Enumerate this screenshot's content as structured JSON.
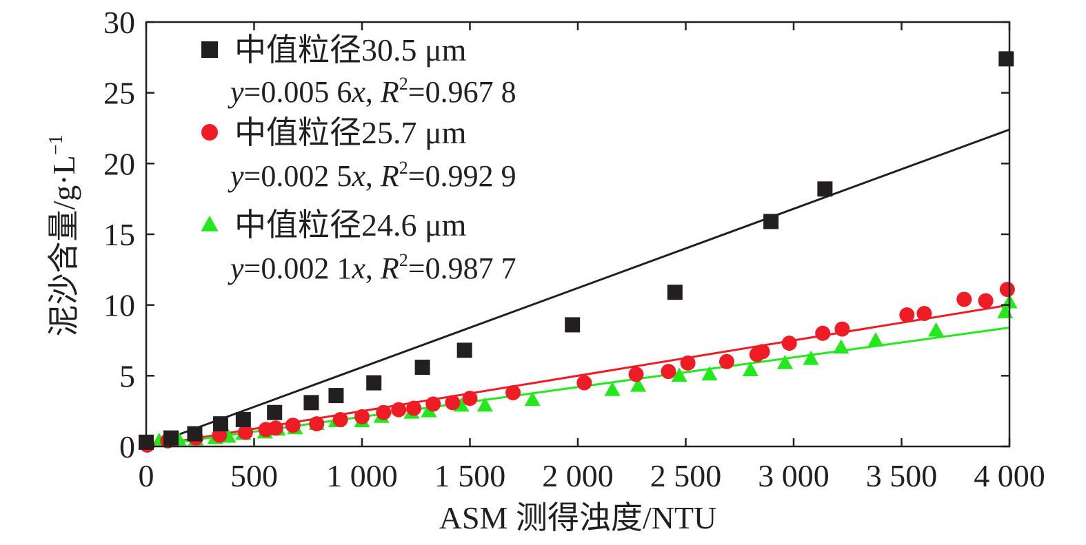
{
  "chart_data": {
    "type": "scatter",
    "xlabel": "ASM 测得浊度/NTU",
    "ylabel_main": "泥沙含量/g·L",
    "ylabel_exp": "−1",
    "xlim": [
      0,
      4000
    ],
    "ylim": [
      0,
      30
    ],
    "x_ticks": [
      0,
      500,
      1000,
      1500,
      2000,
      2500,
      3000,
      3500,
      4000
    ],
    "x_tick_labels": [
      "0",
      "500",
      "1 000",
      "1 500",
      "2 000",
      "2 500",
      "3 000",
      "3 500",
      "4 000"
    ],
    "y_ticks": [
      0,
      5,
      10,
      15,
      20,
      25,
      30
    ],
    "y_tick_labels": [
      "0",
      "5",
      "10",
      "15",
      "20",
      "25",
      "30"
    ],
    "grid": false,
    "legend_position": "top-left",
    "series": [
      {
        "name": "中值粒径30.5 μm",
        "marker": "square",
        "color": "#231f20",
        "fit_line_color": "#231f20",
        "fit_slope": 0.0056,
        "equation": {
          "y": "y",
          "eq": "=0.005 6",
          "x": "x",
          "sep": ", ",
          "r": "R",
          "sup": "2",
          "val": "=0.967 8"
        },
        "points": [
          [
            0,
            0.3
          ],
          [
            115,
            0.6
          ],
          [
            225,
            0.9
          ],
          [
            345,
            1.6
          ],
          [
            450,
            1.9
          ],
          [
            595,
            2.4
          ],
          [
            765,
            3.1
          ],
          [
            880,
            3.6
          ],
          [
            1055,
            4.5
          ],
          [
            1280,
            5.6
          ],
          [
            1475,
            6.8
          ],
          [
            1975,
            8.6
          ],
          [
            2450,
            10.9
          ],
          [
            2895,
            15.9
          ],
          [
            3145,
            18.2
          ],
          [
            3985,
            27.4
          ]
        ]
      },
      {
        "name": "中值粒径25.7 μm",
        "marker": "circle",
        "color": "#ee1c25",
        "fit_line_color": "#ee1c25",
        "fit_slope": 0.0025,
        "equation": {
          "y": "y",
          "eq": "=0.002 5",
          "x": "x",
          "sep": ", ",
          "r": "R",
          "sup": "2",
          "val": "=0.992 9"
        },
        "points": [
          [
            5,
            0.1
          ],
          [
            100,
            0.4
          ],
          [
            230,
            0.6
          ],
          [
            340,
            0.8
          ],
          [
            460,
            1.0
          ],
          [
            555,
            1.2
          ],
          [
            600,
            1.3
          ],
          [
            680,
            1.5
          ],
          [
            790,
            1.6
          ],
          [
            900,
            1.9
          ],
          [
            1000,
            2.1
          ],
          [
            1100,
            2.4
          ],
          [
            1170,
            2.6
          ],
          [
            1240,
            2.7
          ],
          [
            1330,
            3.0
          ],
          [
            1420,
            3.1
          ],
          [
            1500,
            3.4
          ],
          [
            1700,
            3.8
          ],
          [
            2030,
            4.5
          ],
          [
            2270,
            5.1
          ],
          [
            2420,
            5.3
          ],
          [
            2510,
            5.9
          ],
          [
            2690,
            6.0
          ],
          [
            2830,
            6.5
          ],
          [
            2855,
            6.7
          ],
          [
            2980,
            7.3
          ],
          [
            3135,
            8.0
          ],
          [
            3225,
            8.3
          ],
          [
            3525,
            9.3
          ],
          [
            3605,
            9.4
          ],
          [
            3790,
            10.4
          ],
          [
            3890,
            10.3
          ],
          [
            3990,
            11.1
          ]
        ]
      },
      {
        "name": "中值粒径24.6 μm",
        "marker": "triangle",
        "color": "#23e81c",
        "fit_line_color": "#23e81c",
        "fit_slope": 0.0021,
        "equation": {
          "y": "y",
          "eq": "=0.002 1",
          "x": "x",
          "sep": ", ",
          "r": "R",
          "sup": "2",
          "val": "=0.987 7"
        },
        "points": [
          [
            0,
            0.2
          ],
          [
            60,
            0.4
          ],
          [
            150,
            0.5
          ],
          [
            230,
            0.5
          ],
          [
            320,
            0.6
          ],
          [
            380,
            0.7
          ],
          [
            450,
            0.9
          ],
          [
            550,
            1.0
          ],
          [
            610,
            1.2
          ],
          [
            690,
            1.3
          ],
          [
            790,
            1.6
          ],
          [
            880,
            1.8
          ],
          [
            1000,
            1.8
          ],
          [
            1090,
            2.1
          ],
          [
            1230,
            2.4
          ],
          [
            1310,
            2.5
          ],
          [
            1460,
            2.9
          ],
          [
            1570,
            2.9
          ],
          [
            1790,
            3.3
          ],
          [
            2160,
            4.0
          ],
          [
            2280,
            4.3
          ],
          [
            2470,
            5.0
          ],
          [
            2610,
            5.1
          ],
          [
            2800,
            5.4
          ],
          [
            2960,
            5.9
          ],
          [
            3080,
            6.2
          ],
          [
            3220,
            7.0
          ],
          [
            3380,
            7.5
          ],
          [
            3660,
            8.2
          ],
          [
            3980,
            9.5
          ],
          [
            4000,
            10.2
          ]
        ]
      }
    ]
  }
}
